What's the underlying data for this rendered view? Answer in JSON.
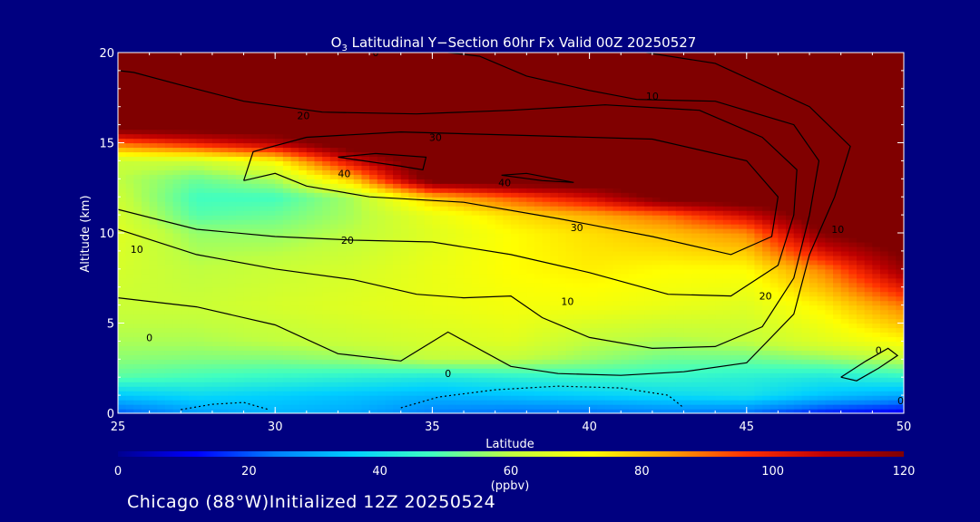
{
  "chart_data": {
    "type": "heatmap",
    "title": "O3 Latitudinal Y-Section 60hr  Fx Valid 00Z 20250527",
    "title_species": "O",
    "title_subscript": "3",
    "title_rest": " Latitudinal Y−Section 60hr  Fx Valid 00Z 20250527",
    "xlabel": "Latitude",
    "ylabel": "Altitude (km)",
    "xlim": [
      25,
      50
    ],
    "ylim": [
      0,
      20
    ],
    "xticks": [
      25,
      30,
      35,
      40,
      45,
      50
    ],
    "yticks": [
      0,
      5,
      10,
      15,
      20
    ],
    "colorbar": {
      "min": 0,
      "max": 120,
      "ticks": [
        0,
        20,
        40,
        60,
        80,
        100,
        120
      ],
      "unit": "(ppbv)",
      "colormap": [
        "#000090",
        "#0000ff",
        "#0080ff",
        "#00d0ff",
        "#40ffc0",
        "#c0ff40",
        "#ffff00",
        "#ffa000",
        "#ff3000",
        "#c00000",
        "#800000"
      ]
    },
    "field": {
      "x": [
        25,
        27.5,
        30,
        32.5,
        35,
        37.5,
        40,
        42.5,
        45,
        47.5,
        50
      ],
      "y": [
        0,
        1,
        2,
        3,
        4,
        6,
        8,
        10,
        11,
        12,
        13,
        14,
        15,
        16,
        17,
        18,
        19,
        20
      ],
      "values": [
        [
          20,
          28,
          32,
          30,
          24,
          22,
          22,
          24,
          22,
          14,
          10
        ],
        [
          35,
          38,
          36,
          34,
          32,
          34,
          36,
          38,
          40,
          34,
          30
        ],
        [
          50,
          48,
          46,
          44,
          42,
          44,
          46,
          46,
          44,
          42,
          45
        ],
        [
          55,
          54,
          54,
          56,
          60,
          60,
          56,
          52,
          52,
          55,
          60
        ],
        [
          58,
          58,
          60,
          62,
          64,
          66,
          60,
          58,
          60,
          66,
          72
        ],
        [
          62,
          62,
          64,
          66,
          68,
          70,
          70,
          68,
          66,
          74,
          88
        ],
        [
          64,
          60,
          62,
          64,
          68,
          72,
          74,
          72,
          72,
          88,
          115
        ],
        [
          66,
          56,
          56,
          60,
          66,
          72,
          76,
          80,
          86,
          120,
          130
        ],
        [
          64,
          50,
          52,
          58,
          68,
          76,
          82,
          90,
          105,
          130,
          130
        ],
        [
          62,
          48,
          48,
          58,
          80,
          92,
          105,
          125,
          130,
          130,
          130
        ],
        [
          60,
          52,
          58,
          80,
          125,
          130,
          130,
          130,
          130,
          130,
          130
        ],
        [
          62,
          62,
          72,
          105,
          130,
          130,
          130,
          130,
          130,
          130,
          130
        ],
        [
          90,
          100,
          110,
          130,
          130,
          130,
          130,
          130,
          130,
          130,
          130
        ],
        [
          130,
          130,
          130,
          130,
          130,
          130,
          130,
          130,
          130,
          130,
          130
        ],
        [
          130,
          130,
          130,
          130,
          130,
          130,
          130,
          130,
          130,
          130,
          130
        ],
        [
          130,
          130,
          130,
          130,
          130,
          130,
          130,
          130,
          130,
          130,
          130
        ],
        [
          130,
          130,
          130,
          130,
          130,
          130,
          130,
          130,
          130,
          130,
          130
        ],
        [
          130,
          130,
          130,
          130,
          130,
          130,
          130,
          130,
          130,
          130,
          130
        ]
      ]
    },
    "contours": [
      {
        "label": "0",
        "dashed": false,
        "points": [
          [
            25,
            6.4
          ],
          [
            27.5,
            5.9
          ],
          [
            30,
            4.9
          ],
          [
            32,
            3.3
          ],
          [
            34,
            2.9
          ],
          [
            35.5,
            4.5
          ],
          [
            37.5,
            2.6
          ],
          [
            39,
            2.2
          ],
          [
            41,
            2.1
          ],
          [
            43,
            2.3
          ],
          [
            45,
            2.8
          ],
          [
            46.5,
            5.5
          ],
          [
            47,
            8.8
          ],
          [
            47.8,
            12
          ],
          [
            48.3,
            14.8
          ],
          [
            47,
            17
          ],
          [
            44,
            19.4
          ],
          [
            41.8,
            20
          ]
        ]
      },
      {
        "label": "10",
        "dashed": false,
        "points": [
          [
            25,
            10.2
          ],
          [
            27.5,
            8.8
          ],
          [
            30,
            8.0
          ],
          [
            32.5,
            7.4
          ],
          [
            34.5,
            6.6
          ],
          [
            36,
            6.4
          ],
          [
            37.5,
            6.5
          ],
          [
            38.5,
            5.3
          ],
          [
            40,
            4.2
          ],
          [
            42,
            3.6
          ],
          [
            44,
            3.7
          ],
          [
            45.5,
            4.8
          ],
          [
            46.5,
            7.5
          ],
          [
            47,
            11
          ],
          [
            47.3,
            14
          ],
          [
            46.5,
            16
          ],
          [
            44,
            17.3
          ],
          [
            41.5,
            17.4
          ],
          [
            40,
            17.9
          ],
          [
            38,
            18.7
          ],
          [
            36.5,
            19.8
          ],
          [
            35.5,
            20
          ]
        ]
      },
      {
        "label": "20",
        "dashed": false,
        "points": [
          [
            25,
            11.3
          ],
          [
            27.5,
            10.2
          ],
          [
            30,
            9.8
          ],
          [
            32.5,
            9.6
          ],
          [
            35,
            9.5
          ],
          [
            37.5,
            8.8
          ],
          [
            40,
            7.8
          ],
          [
            42.5,
            6.6
          ],
          [
            44.5,
            6.5
          ],
          [
            46,
            8.2
          ],
          [
            46.5,
            11
          ],
          [
            46.6,
            13.5
          ],
          [
            45.5,
            15.3
          ],
          [
            43.5,
            16.8
          ],
          [
            40.5,
            17.1
          ],
          [
            37.5,
            16.8
          ],
          [
            34.5,
            16.6
          ],
          [
            31.5,
            16.7
          ],
          [
            29,
            17.3
          ],
          [
            27,
            18.2
          ],
          [
            25.5,
            18.9
          ],
          [
            25,
            19
          ]
        ]
      },
      {
        "label": "30",
        "dashed": false,
        "points": [
          [
            29,
            12.9
          ],
          [
            30,
            13.3
          ],
          [
            31,
            12.6
          ],
          [
            33,
            12
          ],
          [
            36,
            11.7
          ],
          [
            39,
            10.8
          ],
          [
            42,
            9.8
          ],
          [
            44.5,
            8.8
          ],
          [
            45.8,
            9.8
          ],
          [
            46,
            12
          ],
          [
            45,
            14
          ],
          [
            42,
            15.2
          ],
          [
            38,
            15.4
          ],
          [
            34,
            15.6
          ],
          [
            31,
            15.3
          ],
          [
            29.3,
            14.5
          ],
          [
            29,
            12.9
          ]
        ]
      },
      {
        "label": "40",
        "dashed": false,
        "points": [
          [
            32,
            14.2
          ],
          [
            34,
            13.7
          ],
          [
            34.7,
            13.5
          ],
          [
            34.8,
            14.2
          ],
          [
            33.2,
            14.4
          ],
          [
            32,
            14.2
          ]
        ]
      },
      {
        "label": "40",
        "dashed": false,
        "points": [
          [
            37.2,
            13.2
          ],
          [
            38.5,
            12.9
          ],
          [
            39.5,
            12.8
          ],
          [
            38,
            13.3
          ],
          [
            37.2,
            13.2
          ]
        ]
      },
      {
        "label": "0",
        "dashed": false,
        "points": [
          [
            48,
            2
          ],
          [
            48.8,
            2.9
          ],
          [
            49.5,
            3.6
          ],
          [
            49.8,
            3.2
          ],
          [
            49.2,
            2.5
          ],
          [
            48.5,
            1.8
          ],
          [
            48,
            2
          ]
        ]
      },
      {
        "label": "",
        "dashed": true,
        "points": [
          [
            27,
            0.2
          ],
          [
            28,
            0.5
          ],
          [
            29,
            0.6
          ],
          [
            29.8,
            0.2
          ]
        ]
      },
      {
        "label": "",
        "dashed": true,
        "points": [
          [
            34,
            0.3
          ],
          [
            35.2,
            0.9
          ],
          [
            37,
            1.3
          ],
          [
            39,
            1.5
          ],
          [
            41,
            1.4
          ],
          [
            42.5,
            1.0
          ],
          [
            43,
            0.3
          ]
        ]
      }
    ],
    "contour_labels": [
      {
        "text": "0",
        "x": 26,
        "y": 4.2
      },
      {
        "text": "10",
        "x": 25.6,
        "y": 9.1
      },
      {
        "text": "10",
        "x": 42,
        "y": 17.6
      },
      {
        "text": "10",
        "x": 47.9,
        "y": 10.2
      },
      {
        "text": "10",
        "x": 39.3,
        "y": 6.2
      },
      {
        "text": "20",
        "x": 30.9,
        "y": 16.5
      },
      {
        "text": "20",
        "x": 32.3,
        "y": 9.6
      },
      {
        "text": "20",
        "x": 45.6,
        "y": 6.5
      },
      {
        "text": "30",
        "x": 35.1,
        "y": 15.3
      },
      {
        "text": "30",
        "x": 39.6,
        "y": 10.3
      },
      {
        "text": "40",
        "x": 32.2,
        "y": 13.3
      },
      {
        "text": "40",
        "x": 37.3,
        "y": 12.8
      },
      {
        "text": "0",
        "x": 35.5,
        "y": 2.2
      },
      {
        "text": "0",
        "x": 49.2,
        "y": 3.5
      },
      {
        "text": "0",
        "x": 49.9,
        "y": 0.7
      },
      {
        "text": "0",
        "x": 33.2,
        "y": 20
      }
    ]
  },
  "footer": {
    "text": "Chicago (88°W)Initialized 12Z 20250524"
  }
}
